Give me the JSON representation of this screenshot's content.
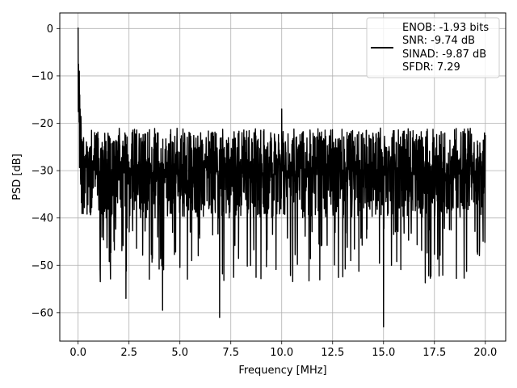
{
  "chart_data": {
    "type": "line",
    "title": "",
    "xlabel": "Frequency [MHz]",
    "ylabel": "PSD [dB]",
    "xlim": [
      -0.9,
      21.0
    ],
    "ylim": [
      -66,
      3.3
    ],
    "xticks": [
      0.0,
      2.5,
      5.0,
      7.5,
      10.0,
      12.5,
      15.0,
      17.5,
      20.0
    ],
    "xtick_labels": [
      "0.0",
      "2.5",
      "5.0",
      "7.5",
      "10.0",
      "12.5",
      "15.0",
      "17.5",
      "20.0"
    ],
    "yticks": [
      0,
      -10,
      -20,
      -30,
      -40,
      -50,
      -60
    ],
    "ytick_labels": [
      "0",
      "−10",
      "−20",
      "−30",
      "−40",
      "−50",
      "−60"
    ],
    "grid": true,
    "legend_position": "top-right",
    "legend_entries": [
      "ENOB: -1.93 bits",
      "SNR: -9.74 dB",
      "SINAD: -9.87 dB",
      "SFDR: 7.29"
    ],
    "series_color": "#000000",
    "series": [
      {
        "x": [
          0.0,
          0.02,
          0.04,
          0.06,
          0.08,
          0.1,
          0.15,
          0.2,
          0.3,
          0.5,
          1.0,
          2.35,
          4.15,
          6.95,
          10.0,
          15.0,
          20.0
        ],
        "y": [
          0.2,
          -7.5,
          -12,
          -9,
          -14,
          -17,
          -21,
          -24,
          -27,
          -28,
          -29,
          -57,
          -59.5,
          -61,
          -17,
          -63,
          -22.5
        ]
      }
    ]
  }
}
